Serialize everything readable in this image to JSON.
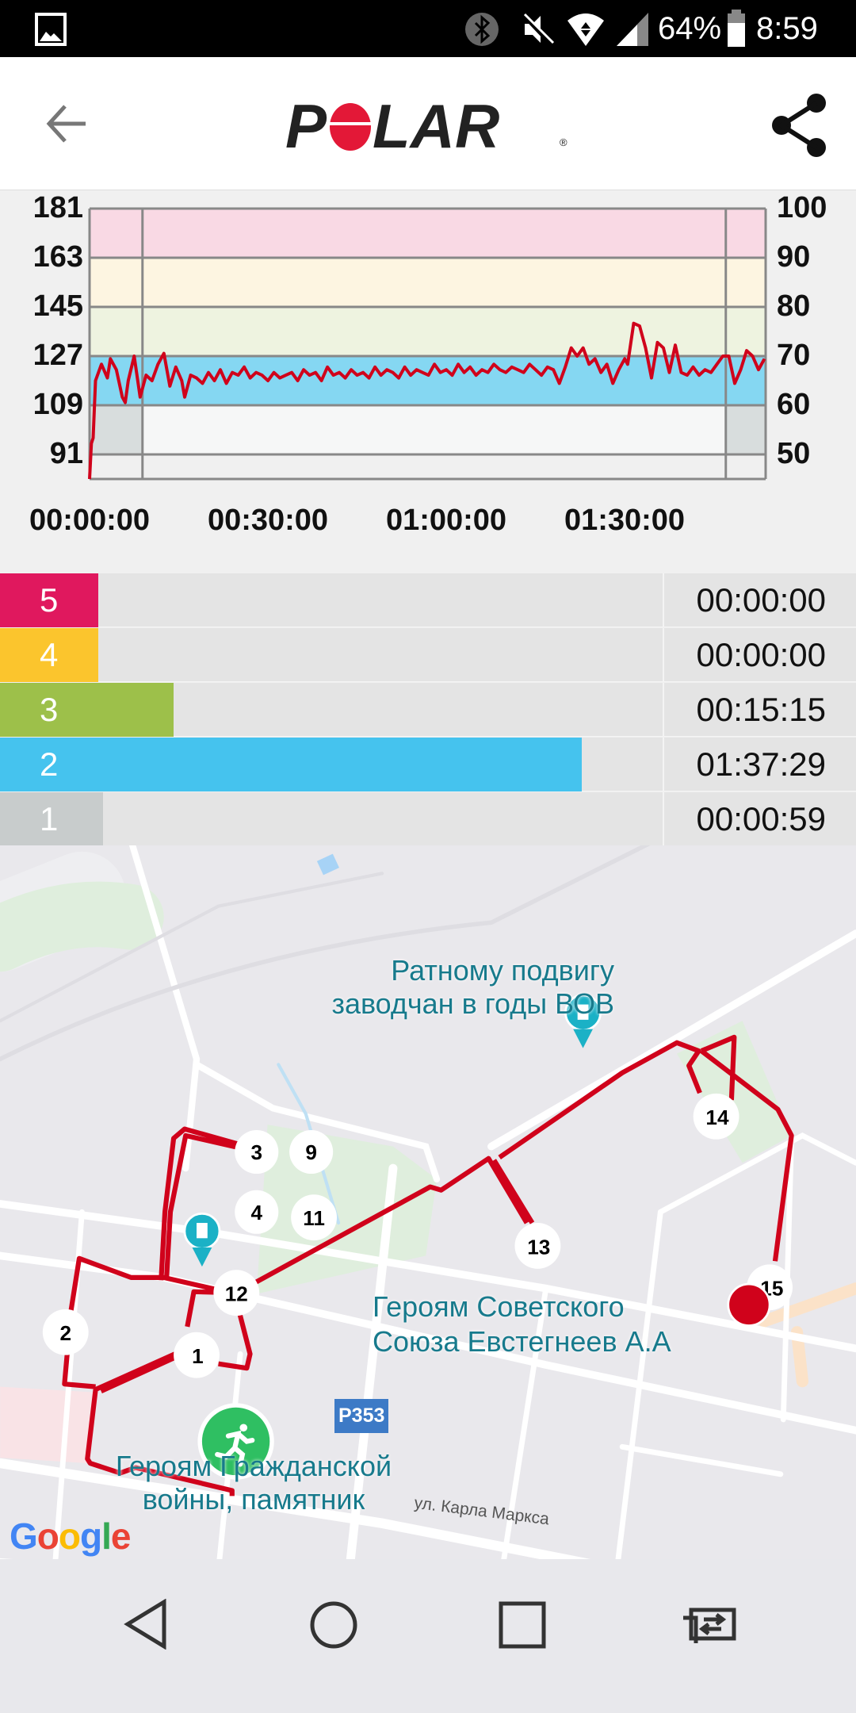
{
  "status_bar": {
    "battery": "64%",
    "time": "8:59",
    "icons": [
      "image-icon",
      "bluetooth-icon",
      "mute-icon",
      "wifi-icon",
      "signal-icon",
      "battery-icon"
    ]
  },
  "header": {
    "logo": "POLAR",
    "back_icon": "arrow-left-icon",
    "share_icon": "share-icon"
  },
  "chart_data": {
    "type": "line",
    "title": "",
    "xlabel": "",
    "ylabel": "",
    "x_tick_labels": [
      "00:00:00",
      "00:30:00",
      "01:00:00",
      "01:30:00"
    ],
    "y_left_ticks": [
      "181",
      "163",
      "145",
      "127",
      "109",
      "91"
    ],
    "y_right_ticks": [
      "100",
      "90",
      "80",
      "70",
      "60",
      "50"
    ],
    "ylim": [
      82,
      181
    ],
    "xlim_minutes": [
      0,
      113.7
    ],
    "zone_band_colors": [
      "#f9d9e4",
      "#fdf5e1",
      "#eef3e0",
      "#85d7f2",
      "#f6f7f7"
    ],
    "line_color": "#d0021b",
    "series": [
      {
        "points": [
          [
            0,
            82
          ],
          [
            0.3,
            95
          ],
          [
            0.6,
            97
          ],
          [
            1,
            118
          ],
          [
            2,
            124
          ],
          [
            3,
            119
          ],
          [
            3.5,
            126
          ],
          [
            4.5,
            122
          ],
          [
            5.5,
            112
          ],
          [
            6,
            110
          ],
          [
            6.5,
            118
          ],
          [
            7.5,
            127
          ],
          [
            8.5,
            112
          ],
          [
            9.5,
            120
          ],
          [
            10.5,
            118
          ],
          [
            11.5,
            124
          ],
          [
            12.5,
            128
          ],
          [
            13.5,
            116
          ],
          [
            14.5,
            123
          ],
          [
            15.5,
            118
          ],
          [
            16,
            112
          ],
          [
            17,
            120
          ],
          [
            18,
            119
          ],
          [
            19,
            117
          ],
          [
            20,
            121
          ],
          [
            21,
            118
          ],
          [
            22,
            122
          ],
          [
            23,
            117
          ],
          [
            24,
            121
          ],
          [
            25,
            120
          ],
          [
            26,
            123
          ],
          [
            27,
            119
          ],
          [
            28,
            121
          ],
          [
            29,
            120
          ],
          [
            30,
            118
          ],
          [
            31,
            121
          ],
          [
            32,
            119
          ],
          [
            33,
            120
          ],
          [
            34,
            121
          ],
          [
            35,
            118
          ],
          [
            36,
            122
          ],
          [
            37,
            120
          ],
          [
            38,
            121
          ],
          [
            39,
            118
          ],
          [
            40,
            123
          ],
          [
            41,
            120
          ],
          [
            42,
            121
          ],
          [
            43,
            119
          ],
          [
            44,
            122
          ],
          [
            45,
            120
          ],
          [
            46,
            121
          ],
          [
            47,
            119
          ],
          [
            48,
            123
          ],
          [
            49,
            120
          ],
          [
            50,
            122
          ],
          [
            51,
            121
          ],
          [
            52,
            119
          ],
          [
            53,
            123
          ],
          [
            54,
            120
          ],
          [
            55,
            122
          ],
          [
            56,
            121
          ],
          [
            57,
            120
          ],
          [
            58,
            124
          ],
          [
            59,
            121
          ],
          [
            60,
            122
          ],
          [
            61,
            120
          ],
          [
            62,
            124
          ],
          [
            63,
            121
          ],
          [
            64,
            123
          ],
          [
            65,
            120
          ],
          [
            66,
            122
          ],
          [
            67,
            121
          ],
          [
            68,
            124
          ],
          [
            69,
            122
          ],
          [
            70,
            121
          ],
          [
            71,
            123
          ],
          [
            72,
            122
          ],
          [
            73,
            121
          ],
          [
            74,
            124
          ],
          [
            75,
            122
          ],
          [
            76,
            120
          ],
          [
            77,
            123
          ],
          [
            78,
            122
          ],
          [
            79,
            117
          ],
          [
            80,
            123
          ],
          [
            81,
            130
          ],
          [
            82,
            127
          ],
          [
            83,
            130
          ],
          [
            84,
            124
          ],
          [
            85,
            126
          ],
          [
            86,
            121
          ],
          [
            87,
            124
          ],
          [
            88,
            117
          ],
          [
            89,
            122
          ],
          [
            90,
            126
          ],
          [
            90.5,
            124
          ],
          [
            91.5,
            139
          ],
          [
            92.5,
            138
          ],
          [
            93.5,
            130
          ],
          [
            94.5,
            119
          ],
          [
            95.5,
            132
          ],
          [
            96.5,
            130
          ],
          [
            97.5,
            121
          ],
          [
            98.5,
            131
          ],
          [
            99.5,
            121
          ],
          [
            100.5,
            120
          ],
          [
            101.5,
            123
          ],
          [
            102.5,
            120
          ],
          [
            103.5,
            122
          ],
          [
            104.5,
            121
          ],
          [
            105.5,
            124
          ],
          [
            106.5,
            127
          ],
          [
            107.5,
            127
          ],
          [
            108.5,
            117
          ],
          [
            109.5,
            122
          ],
          [
            110.5,
            129
          ],
          [
            111.5,
            127
          ],
          [
            112.5,
            122
          ],
          [
            113.5,
            126
          ]
        ]
      }
    ]
  },
  "zones": [
    {
      "zone": "5",
      "time": "00:00:00",
      "fraction": 0.0,
      "color": "#e0185e"
    },
    {
      "zone": "4",
      "time": "00:00:00",
      "fraction": 0.0,
      "color": "#fbc52d"
    },
    {
      "zone": "3",
      "time": "00:15:15",
      "fraction": 0.134,
      "color": "#9dc04a"
    },
    {
      "zone": "2",
      "time": "01:37:29",
      "fraction": 0.857,
      "color": "#45c3ee"
    },
    {
      "zone": "1",
      "time": "00:00:59",
      "fraction": 0.009,
      "color": "#c8cccc"
    }
  ],
  "map": {
    "poi": [
      {
        "lines": [
          "Ратному подвигу",
          "заводчан в годы ВОВ"
        ]
      },
      {
        "lines": [
          "Героям Советского",
          "Союза Евстегнеев А.А"
        ]
      },
      {
        "lines": [
          "Героям Гражданской",
          "войны, памятник"
        ]
      }
    ],
    "street": "ул. Карла Маркса",
    "road_shield": "Р353",
    "attribution": "Google",
    "markers": [
      "1",
      "2",
      "3",
      "9",
      "4",
      "11",
      "12",
      "13",
      "14",
      "15"
    ],
    "route_color": "#d0021b",
    "start_color": "#2fbf62"
  },
  "nav": {
    "icons": [
      "back-triangle-icon",
      "home-circle-icon",
      "recents-square-icon",
      "screen-switch-icon"
    ]
  }
}
